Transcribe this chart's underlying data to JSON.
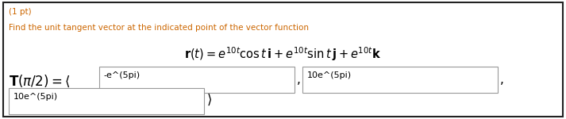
{
  "background_color": "#ffffff",
  "border_color": "#222222",
  "pt_text": "(1 pt)",
  "pt_color": "#cc6600",
  "instruction_text": "Find the unit tangent vector at the indicated point of the vector function",
  "instruction_color": "#cc6600",
  "formula": "$\\mathbf{r}(t) = e^{10t}\\cos t\\,\\mathbf{i} + e^{10t}\\sin t\\,\\mathbf{j} + e^{10t}\\mathbf{k}$",
  "T_label": "$\\mathbf{T}(\\pi/2) = \\langle$",
  "box1_text": "-e^(5pi)",
  "box2_text": "10e^(5pi)",
  "box3_text": "10e^(5pi)",
  "box_bg": "#ffffff",
  "box_border": "#999999",
  "text_color": "#000000",
  "formula_color": "#000000",
  "figw": 7.13,
  "figh": 1.5,
  "dpi": 100
}
